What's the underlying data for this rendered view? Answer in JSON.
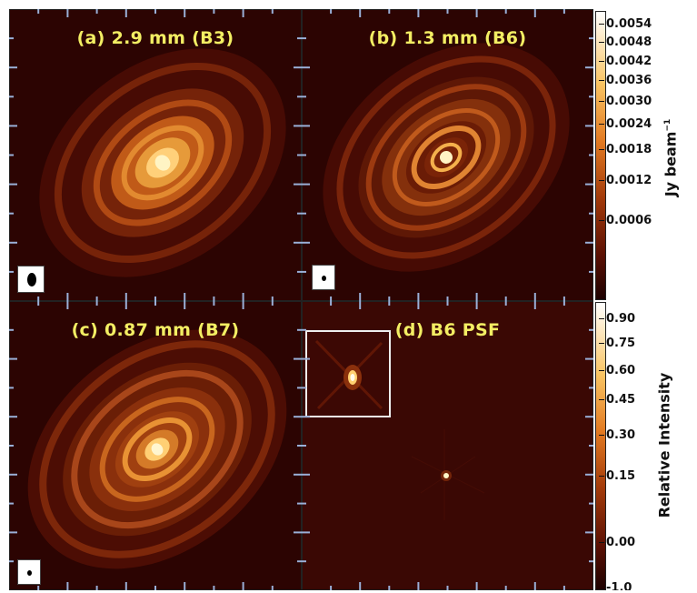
{
  "panels": {
    "a": {
      "title": "(a) 2.9 mm (B3)"
    },
    "b": {
      "title": "(b) 1.3 mm (B6)"
    },
    "c": {
      "title": "(c) 0.87 mm (B7)"
    },
    "d": {
      "title": "(d) B6 PSF"
    }
  },
  "colorbar_top": {
    "label": "Jy beam",
    "label_exponent": "−1",
    "ticks": [
      "0.0054",
      "0.0048",
      "0.0042",
      "0.0036",
      "0.0030",
      "0.0024",
      "0.0018",
      "0.0012",
      "0.0006"
    ]
  },
  "colorbar_bottom": {
    "label": "Relative Intensity",
    "ticks": [
      "0.90",
      "0.75",
      "0.60",
      "0.45",
      "0.30",
      "0.15",
      "0.00",
      "-1.0"
    ]
  },
  "colors": {
    "background": "#2c0402",
    "ring": "#c45a12",
    "core": "#fff6c0",
    "title": "#f3ee63"
  }
}
